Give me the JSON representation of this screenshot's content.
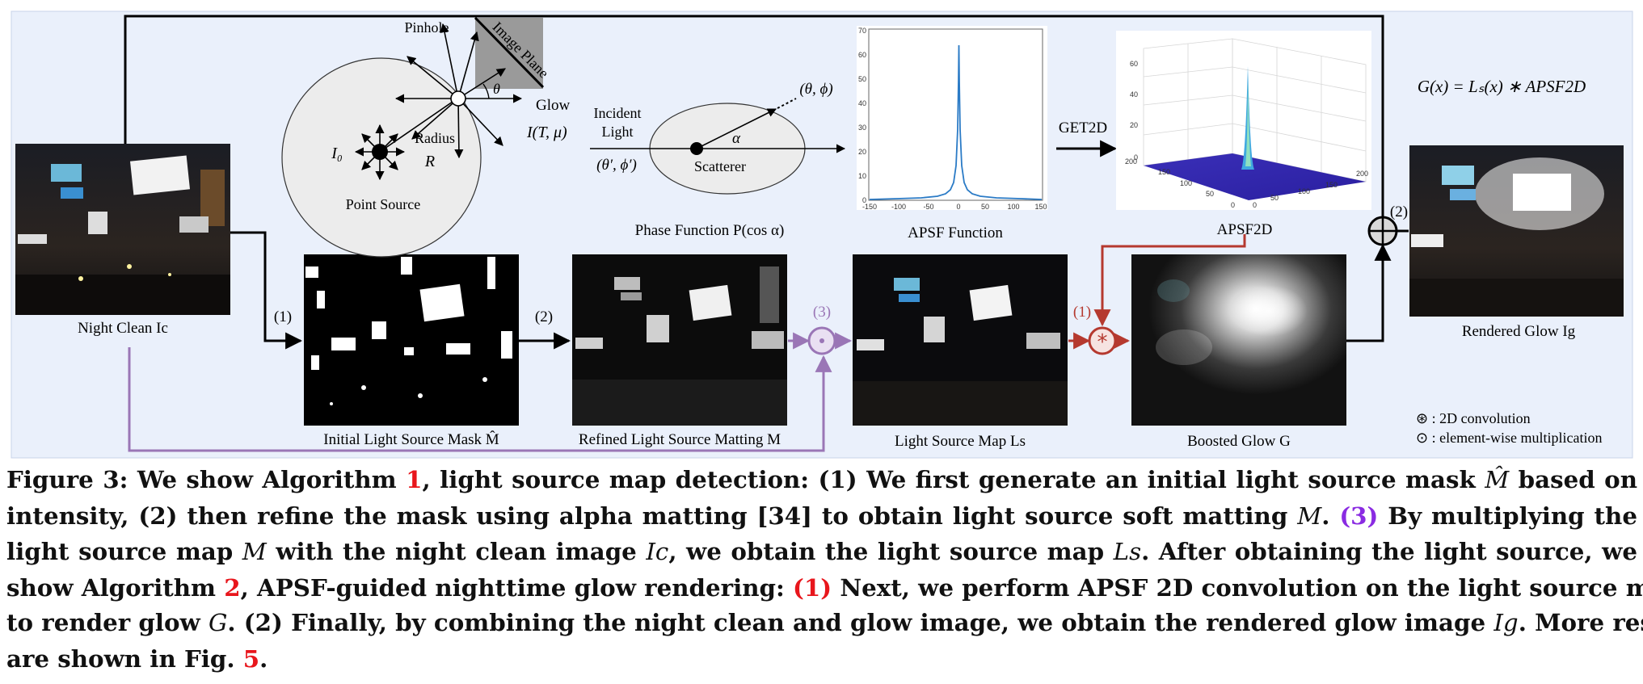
{
  "figure": {
    "diagram": {
      "pinhole": "Pinhole",
      "image_plane": "Image Plane",
      "theta": "θ",
      "glow": "Glow",
      "glow_eq": "I(T, μ)",
      "radius": "Radius",
      "radius_sym": "R",
      "i0": "I₀",
      "point_source": "Point Source",
      "incident_line1": "Incident",
      "incident_line2": "Light",
      "incident_angles": "(θ′, ϕ′)",
      "theta_phi": "(θ, ϕ)",
      "alpha": "α",
      "scatterer": "Scatterer",
      "phase_function": "Phase Function P(cos α)"
    },
    "apsf_plot": {
      "title": "APSF Function",
      "yticks": [
        "0",
        "10",
        "20",
        "30",
        "40",
        "50",
        "60",
        "70"
      ],
      "xticks": [
        "-150",
        "-100",
        "-50",
        "0",
        "50",
        "100",
        "150"
      ]
    },
    "apsf2d_plot": {
      "title": "APSF2D",
      "zticks": [
        "0",
        "20",
        "40",
        "60"
      ],
      "ticks_left": [
        "200",
        "150",
        "100",
        "50",
        "0"
      ],
      "ticks_right": [
        "0",
        "50",
        "100",
        "150",
        "200"
      ]
    },
    "get2d": "GET2D",
    "equation": "G(x) = Lₛ(x) ∗ APSF2D",
    "labels": {
      "night_clean": "Night Clean Ic",
      "initial_mask": "Initial Light Source Mask M̂",
      "refined_matting": "Refined Light Source Matting M",
      "light_map": "Light Source Map Ls",
      "boosted_glow": "Boosted Glow G",
      "rendered_glow": "Rendered Glow Ig"
    },
    "steps": {
      "s1": "(1)",
      "s2": "(2)",
      "s3": "(3)",
      "r1": "(1)",
      "r2": "(2)"
    },
    "legend": {
      "conv": "⊛ : 2D convolution",
      "mult": "⊙ : element-wise multiplication"
    },
    "colors": {
      "purple": "#9a76b6",
      "red": "#b5392f",
      "panel": "#e9effa"
    }
  },
  "caption": {
    "l1a": "Figure 3: We show Algorithm ",
    "l1b": "1",
    "l1c": ", light source map detection: (1) We first generate an initial light source mask ",
    "l1d": "M̂",
    "l1e": " based on",
    "l2a": "intensity, (2) then refine the mask using alpha matting [34] to obtain light source soft matting ",
    "l2b": "M",
    "l2c": ". ",
    "l2d": "(3)",
    "l2e": " By multiplying the",
    "l3a": "light source map ",
    "l3b": "M",
    "l3c": " with the night clean image ",
    "l3d": "Ic",
    "l3e": ", we obtain the light source map ",
    "l3f": "Ls",
    "l3g": ". After obtaining the light source, we",
    "l4a": "show Algorithm ",
    "l4b": "2",
    "l4c": ", APSF-guided nighttime glow rendering: ",
    "l4d": "(1)",
    "l4e": " Next, we perform APSF 2D convolution on the light source map",
    "l5a": "to render glow ",
    "l5b": "G",
    "l5c": ". (2) Finally, by combining the night clean and glow image, we obtain the rendered glow image ",
    "l5d": "Ig",
    "l5e": ". More results",
    "l6a": "are shown in Fig. ",
    "l6b": "5",
    "l6c": "."
  }
}
